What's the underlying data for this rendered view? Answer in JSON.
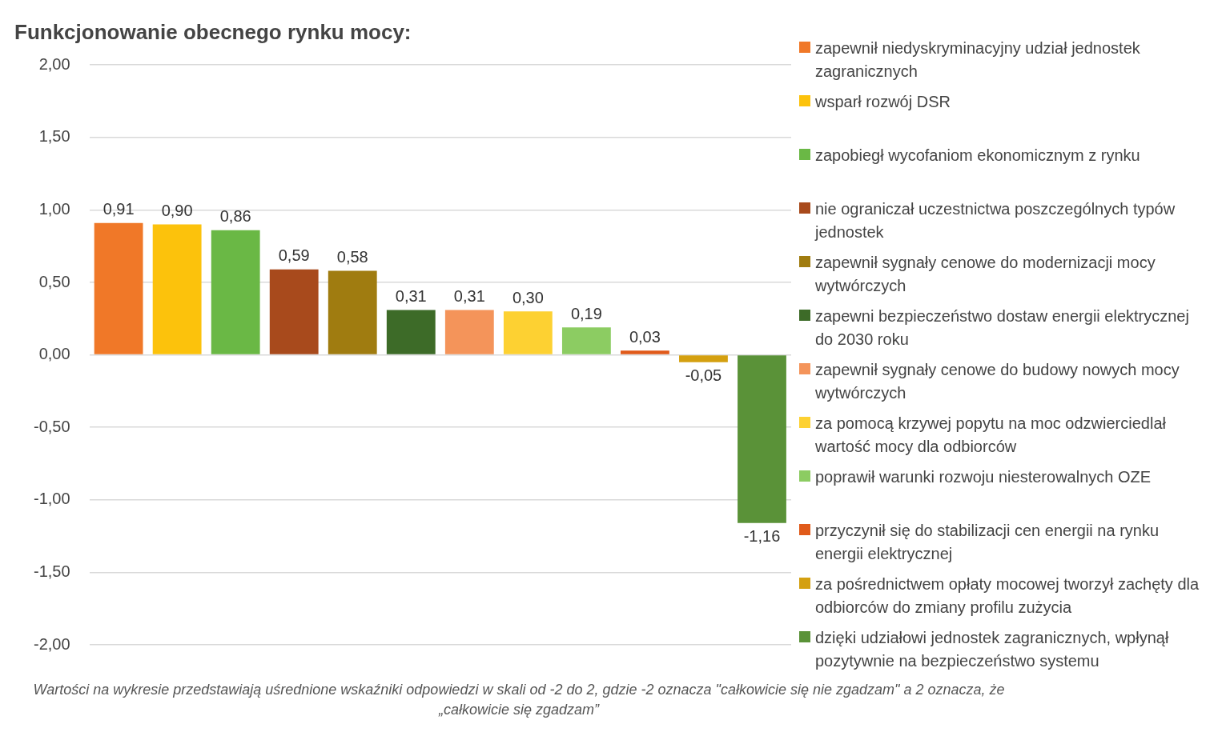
{
  "chart_data": {
    "type": "bar",
    "title": "Funkcjonowanie obecnego rynku mocy:",
    "categories": [
      null,
      null,
      null,
      null,
      null,
      null,
      null,
      null,
      null,
      null,
      null,
      null
    ],
    "series": [
      {
        "name": "zapewnił niedyskryminacyjny udział jednostek zagranicznych",
        "color": "#f07828",
        "values": [
          0.91,
          null,
          null,
          null,
          null,
          null,
          null,
          null,
          null,
          null,
          null,
          null
        ],
        "value_labels": [
          "0,91",
          null,
          null,
          null,
          null,
          null,
          null,
          null,
          null,
          null,
          null,
          null
        ]
      },
      {
        "name": "wsparł rozwój DSR",
        "color": "#fcc20c",
        "values": [
          null,
          0.9,
          null,
          null,
          null,
          null,
          null,
          null,
          null,
          null,
          null,
          null
        ],
        "value_labels": [
          null,
          "0,90",
          null,
          null,
          null,
          null,
          null,
          null,
          null,
          null,
          null,
          null
        ]
      },
      {
        "name": "zapobiegł wycofaniom ekonomicznym z rynku",
        "color": "#6ab845",
        "values": [
          null,
          null,
          0.86,
          null,
          null,
          null,
          null,
          null,
          null,
          null,
          null,
          null
        ],
        "value_labels": [
          null,
          null,
          "0,86",
          null,
          null,
          null,
          null,
          null,
          null,
          null,
          null,
          null
        ]
      },
      {
        "name": "nie ograniczał uczestnictwa poszczególnych typów jednostek",
        "color": "#a84a1c",
        "values": [
          null,
          null,
          null,
          0.59,
          null,
          null,
          null,
          null,
          null,
          null,
          null,
          null
        ],
        "value_labels": [
          null,
          null,
          null,
          "0,59",
          null,
          null,
          null,
          null,
          null,
          null,
          null,
          null
        ]
      },
      {
        "name": "zapewnił sygnały cenowe do modernizacji mocy wytwórczych",
        "color": "#a07c10",
        "values": [
          null,
          null,
          null,
          null,
          0.58,
          null,
          null,
          null,
          null,
          null,
          null,
          null
        ],
        "value_labels": [
          null,
          null,
          null,
          null,
          "0,58",
          null,
          null,
          null,
          null,
          null,
          null,
          null
        ]
      },
      {
        "name": "zapewni bezpieczeństwo dostaw energii elektrycznej do 2030 roku",
        "color": "#3d6b28",
        "values": [
          null,
          null,
          null,
          null,
          null,
          0.31,
          null,
          null,
          null,
          null,
          null,
          null
        ],
        "value_labels": [
          null,
          null,
          null,
          null,
          null,
          "0,31",
          null,
          null,
          null,
          null,
          null,
          null
        ]
      },
      {
        "name": "zapewnił sygnały cenowe do budowy nowych mocy wytwórczych",
        "color": "#f4945a",
        "values": [
          null,
          null,
          null,
          null,
          null,
          null,
          0.31,
          null,
          null,
          null,
          null,
          null
        ],
        "value_labels": [
          null,
          null,
          null,
          null,
          null,
          null,
          "0,31",
          null,
          null,
          null,
          null,
          null
        ]
      },
      {
        "name": "za pomocą krzywej popytu na moc odzwierciedlał wartość mocy dla odbiorców",
        "color": "#fdd132",
        "values": [
          null,
          null,
          null,
          null,
          null,
          null,
          null,
          0.3,
          null,
          null,
          null,
          null
        ],
        "value_labels": [
          null,
          null,
          null,
          null,
          null,
          null,
          null,
          "0,30",
          null,
          null,
          null,
          null
        ]
      },
      {
        "name": "poprawił warunki rozwoju niesterowalnych OZE",
        "color": "#8ccc62",
        "values": [
          null,
          null,
          null,
          null,
          null,
          null,
          null,
          null,
          0.19,
          null,
          null,
          null
        ],
        "value_labels": [
          null,
          null,
          null,
          null,
          null,
          null,
          null,
          null,
          "0,19",
          null,
          null,
          null
        ]
      },
      {
        "name": "przyczynił się do stabilizacji cen energii na rynku energii elektrycznej",
        "color": "#e05a1a",
        "values": [
          null,
          null,
          null,
          null,
          null,
          null,
          null,
          null,
          null,
          0.03,
          null,
          null
        ],
        "value_labels": [
          null,
          null,
          null,
          null,
          null,
          null,
          null,
          null,
          null,
          "0,03",
          null,
          null
        ]
      },
      {
        "name": "za pośrednictwem opłaty mocowej tworzył zachęty dla odbiorców do zmiany profilu zużycia",
        "color": "#d4a010",
        "values": [
          null,
          null,
          null,
          null,
          null,
          null,
          null,
          null,
          null,
          null,
          -0.05,
          null
        ],
        "value_labels": [
          null,
          null,
          null,
          null,
          null,
          null,
          null,
          null,
          null,
          null,
          "-0,05",
          null
        ]
      },
      {
        "name": "dzięki udziałowi jednostek zagranicznych, wpłynął pozytywnie na bezpieczeństwo systemu",
        "color": "#5a9238",
        "values": [
          null,
          null,
          null,
          null,
          null,
          null,
          null,
          null,
          null,
          null,
          null,
          -1.16
        ],
        "value_labels": [
          null,
          null,
          null,
          null,
          null,
          null,
          null,
          null,
          null,
          null,
          null,
          "-1,16"
        ]
      }
    ],
    "ylim": [
      -2,
      2
    ],
    "yticks": [
      {
        "value": -2,
        "label": "-2,00"
      },
      {
        "value": -1.5,
        "label": "-1,50"
      },
      {
        "value": -1,
        "label": "-1,00"
      },
      {
        "value": -0.5,
        "label": "-0,50"
      },
      {
        "value": 0,
        "label": "0,00"
      },
      {
        "value": 0.5,
        "label": "0,50"
      },
      {
        "value": 1,
        "label": "1,00"
      },
      {
        "value": 1.5,
        "label": "1,50"
      },
      {
        "value": 2,
        "label": "2,00"
      }
    ],
    "grid": "y",
    "tick_labels": "y",
    "legend": "right",
    "annotations": [
      "Wartości na wykresie przedstawiają uśrednione wskaźniki odpowiedzi w skali od -2 do 2, gdzie -2 oznacza \"całkowicie się nie zgadzam\" a 2 oznacza, że „całkowicie się zgadzam”"
    ]
  }
}
